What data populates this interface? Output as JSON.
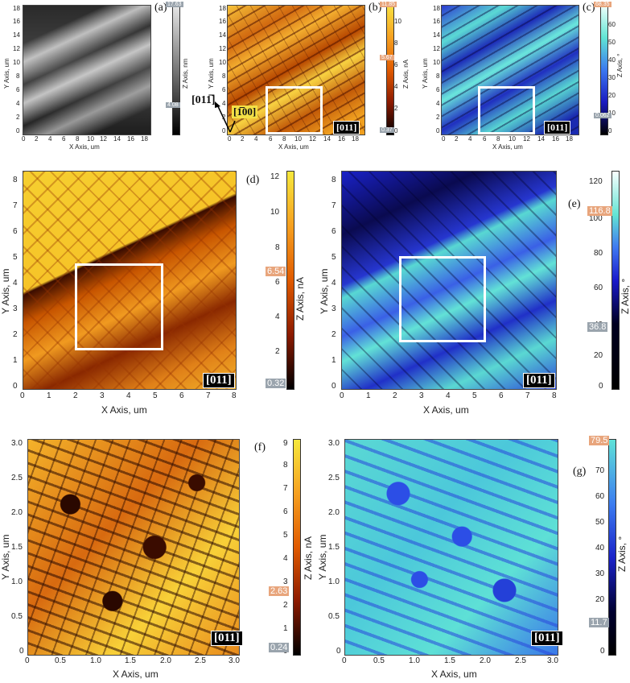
{
  "panels": {
    "a": {
      "letter": "(a)",
      "xlabel": "X Axis, um",
      "ylabel": "Y Axis, um",
      "xticks": [
        "0",
        "2",
        "4",
        "6",
        "8",
        "10",
        "12",
        "14",
        "16",
        "18"
      ],
      "yticks": [
        "0",
        "2",
        "4",
        "6",
        "8",
        "10",
        "12",
        "14",
        "16",
        "18"
      ],
      "cbar_label": "Z Axis, nm",
      "cbar_ticks": [
        "0",
        "2",
        "4",
        "6",
        "8",
        "10",
        "12",
        "14",
        "16"
      ],
      "cbar_top": "17.63",
      "cbar_mid": "4.08",
      "colormap": [
        "#1c1c1c",
        "#505050",
        "#9a9a9a",
        "#d6d6d6"
      ]
    },
    "b": {
      "letter": "(b)",
      "xlabel": "X Axis, um",
      "ylabel": "Y Axis, um",
      "xticks": [
        "0",
        "2",
        "4",
        "6",
        "8",
        "10",
        "12",
        "14",
        "16",
        "18"
      ],
      "yticks": [
        "0",
        "2",
        "4",
        "6",
        "8",
        "10",
        "12",
        "14",
        "16",
        "18"
      ],
      "cbar_label": "Z Axis, nA",
      "cbar_ticks": [
        "0",
        "2",
        "4",
        "6",
        "8",
        "10"
      ],
      "cbar_top": "11.85",
      "cbar_mid": "5.67",
      "cbar_bot": "0.37",
      "badge": "[011]",
      "dir1": "[011̅]",
      "dir2": "[1̅00]",
      "colormap": [
        "#3a0a00",
        "#a83a00",
        "#ee8a18",
        "#f8d238"
      ]
    },
    "c": {
      "letter": "(c)",
      "xlabel": "X Axis, um",
      "ylabel": "Y Axis, um",
      "xticks": [
        "0",
        "2",
        "4",
        "6",
        "8",
        "10",
        "12",
        "14",
        "16",
        "18"
      ],
      "yticks": [
        "0",
        "2",
        "4",
        "6",
        "8",
        "10",
        "12",
        "14",
        "16",
        "18"
      ],
      "cbar_label": "Z Axis, °",
      "cbar_ticks": [
        "0",
        "10",
        "20",
        "30",
        "40",
        "50",
        "60"
      ],
      "cbar_top": "68.35",
      "cbar_mid": "0.062",
      "badge": "[011]",
      "colormap": [
        "#08082a",
        "#1818b8",
        "#3b6aee",
        "#5ee2d6"
      ]
    },
    "d": {
      "letter": "(d)",
      "xlabel": "X Axis, um",
      "ylabel": "Y Axis, um",
      "xticks": [
        "0",
        "1",
        "2",
        "3",
        "4",
        "5",
        "6",
        "7",
        "8"
      ],
      "yticks": [
        "0",
        "1",
        "2",
        "3",
        "4",
        "5",
        "6",
        "7",
        "8"
      ],
      "cbar_label": "Z Axis, nA",
      "cbar_ticks": [
        "0",
        "2",
        "4",
        "6",
        "8",
        "10",
        "12"
      ],
      "cbar_mid": "6.54",
      "cbar_bot": "0.32",
      "badge": "[011]",
      "colormap": [
        "#3a0a00",
        "#b84600",
        "#f09a20",
        "#f6e23c"
      ]
    },
    "e": {
      "letter": "(e)",
      "xlabel": "X Axis, um",
      "ylabel": "Y Axis, um",
      "xticks": [
        "0",
        "1",
        "2",
        "3",
        "4",
        "5",
        "6",
        "7",
        "8"
      ],
      "yticks": [
        "0",
        "1",
        "2",
        "3",
        "4",
        "5",
        "6",
        "7",
        "8"
      ],
      "cbar_label": "Z Axis, °",
      "cbar_ticks": [
        "0",
        "20",
        "40",
        "60",
        "80",
        "100",
        "120"
      ],
      "cbar_top": "116.8",
      "cbar_mid": "36.8",
      "badge": "[011]",
      "colormap": [
        "#000020",
        "#1a1acc",
        "#3f78f0",
        "#62e4d4",
        "#f4fffc"
      ]
    },
    "f": {
      "letter": "(f)",
      "xlabel": "X Axis, um",
      "ylabel": "Y Axis, um",
      "xticks": [
        "0",
        "0.5",
        "1.0",
        "1.5",
        "2.0",
        "2.5",
        "3.0"
      ],
      "yticks": [
        "0",
        "0.5",
        "1.0",
        "1.5",
        "2.0",
        "2.5",
        "3.0"
      ],
      "cbar_label": "Z Axis, nA",
      "cbar_ticks": [
        "0",
        "1",
        "2",
        "3",
        "4",
        "5",
        "6",
        "7",
        "8",
        "9"
      ],
      "cbar_mid": "2.63",
      "cbar_bot": "0.24",
      "badge": "[011]",
      "colormap": [
        "#2a0600",
        "#b23c00",
        "#ef8e1c",
        "#f8e03a"
      ]
    },
    "g": {
      "letter": "(g)",
      "xlabel": "X Axis, um",
      "ylabel": "Y Axis, um",
      "xticks": [
        "0",
        "0.5",
        "1.0",
        "1.5",
        "2.0",
        "2.5",
        "3.0"
      ],
      "yticks": [
        "0",
        "0.5",
        "1.0",
        "1.5",
        "2.0",
        "2.5",
        "3.0"
      ],
      "cbar_label": "Z Axis, °",
      "cbar_ticks": [
        "0",
        "10",
        "20",
        "30",
        "40",
        "50",
        "60",
        "70"
      ],
      "cbar_top": "79.5",
      "cbar_mid": "11.7",
      "badge": "[011]",
      "colormap": [
        "#000030",
        "#1a22c8",
        "#3c7cf0",
        "#5fe2d8"
      ]
    }
  }
}
